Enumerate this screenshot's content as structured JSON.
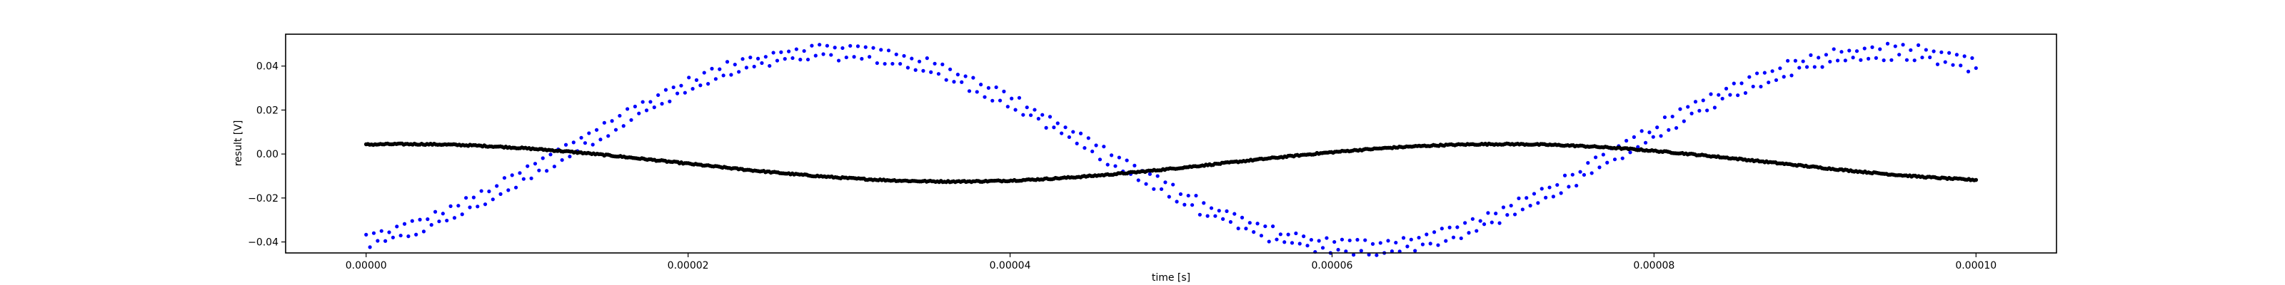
{
  "chart_data": {
    "type": "scatter",
    "title": "",
    "xlabel": "time [s]",
    "ylabel": "result [V]",
    "xlim": [
      -5e-06,
      0.000105
    ],
    "ylim": [
      -0.045,
      0.0545
    ],
    "xticks": [
      0.0,
      2e-05,
      4e-05,
      6e-05,
      8e-05,
      0.0001
    ],
    "xtick_labels": [
      "0.00000",
      "0.00002",
      "0.00004",
      "0.00006",
      "0.00008",
      "0.00010"
    ],
    "yticks": [
      -0.04,
      -0.02,
      0.0,
      0.02,
      0.04
    ],
    "ytick_labels": [
      "−0.04",
      "−0.02",
      "0.00",
      "0.02",
      "0.04"
    ],
    "grid": false,
    "legend": "none",
    "series": [
      {
        "color": "#0000ff",
        "marker": "dot",
        "x_start": 0.0,
        "x_end": 0.0001,
        "points": 420,
        "model": "sinusoid, two interleaved branches",
        "amplitude": 0.0445,
        "center": 0.002,
        "period": 6.55e-05,
        "phase_peak_at": 2.9e-05,
        "branch_offset": 0.0025,
        "noise": 0.0015,
        "samples": [
          {
            "x": 0.0,
            "y": -0.032
          },
          {
            "x": 1e-05,
            "y": 0.001
          },
          {
            "x": 2e-05,
            "y": 0.034
          },
          {
            "x": 3e-05,
            "y": 0.046
          },
          {
            "x": 4e-05,
            "y": 0.032
          },
          {
            "x": 5e-05,
            "y": 0.0
          },
          {
            "x": 6e-05,
            "y": -0.036
          },
          {
            "x": 7e-05,
            "y": -0.027
          },
          {
            "x": 8e-05,
            "y": 0.006
          },
          {
            "x": 9e-05,
            "y": 0.037
          },
          {
            "x": 0.0001,
            "y": 0.042
          }
        ]
      },
      {
        "color": "#000000",
        "marker": "dot",
        "x_start": 0.0,
        "x_end": 0.0001,
        "points": 900,
        "model": "slow sinusoid",
        "amplitude": 0.0085,
        "center": -0.004,
        "period": 6.8e-05,
        "phase_peak_at": 2.5e-06,
        "branch_offset": 0.0,
        "noise": 0.0003,
        "samples": [
          {
            "x": 0.0,
            "y": 0.004
          },
          {
            "x": 1e-05,
            "y": 0.002
          },
          {
            "x": 2e-05,
            "y": -0.007
          },
          {
            "x": 3e-05,
            "y": -0.012
          },
          {
            "x": 4e-05,
            "y": -0.012
          },
          {
            "x": 5e-05,
            "y": -0.005
          },
          {
            "x": 6e-05,
            "y": 0.002
          },
          {
            "x": 7e-05,
            "y": 0.004
          },
          {
            "x": 8e-05,
            "y": 0.001
          },
          {
            "x": 9e-05,
            "y": -0.009
          },
          {
            "x": 0.0001,
            "y": -0.013
          }
        ]
      }
    ]
  }
}
